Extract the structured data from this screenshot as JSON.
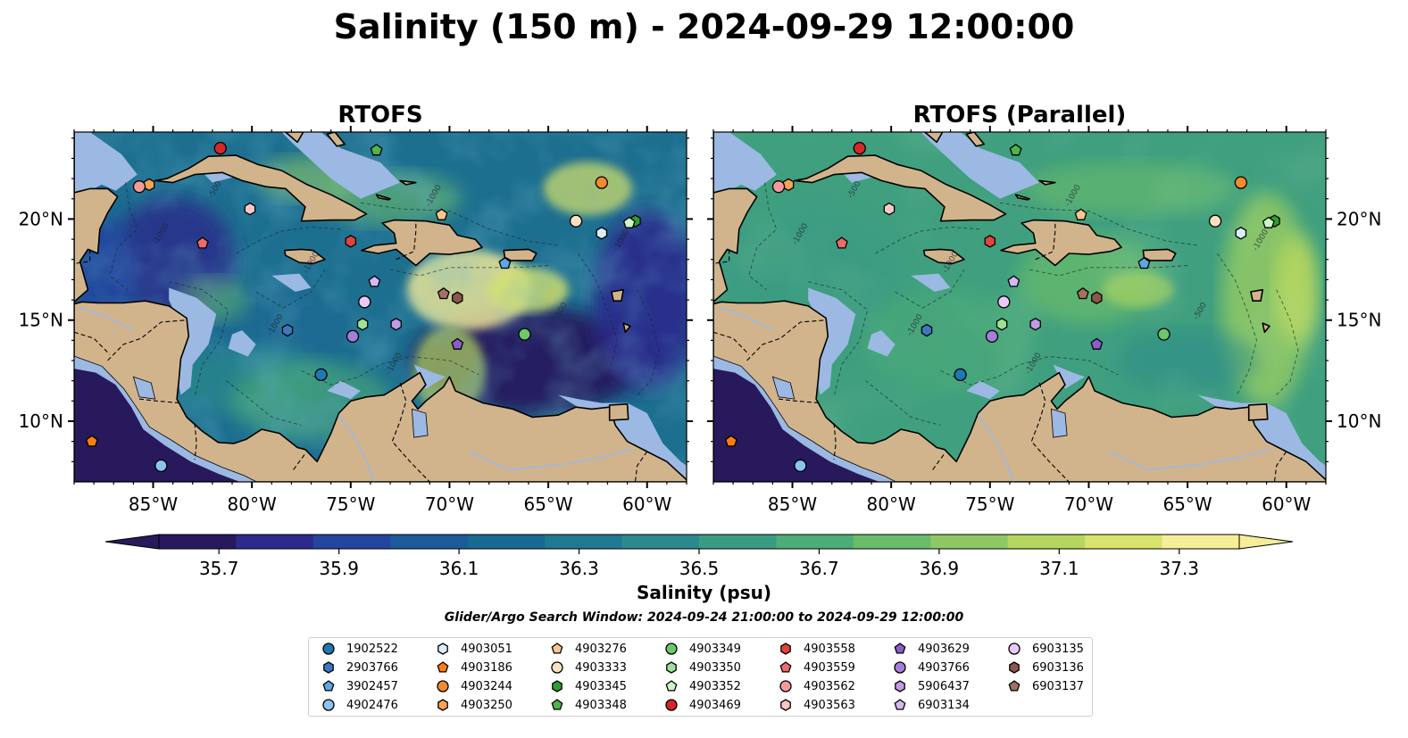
{
  "title": "Salinity (150 m) - 2024-09-29 12:00:00",
  "panels": [
    {
      "title": "RTOFS"
    },
    {
      "title": "RTOFS (Parallel)"
    }
  ],
  "map": {
    "lon_range": [
      -89,
      -58
    ],
    "lat_range": [
      7,
      24.3
    ],
    "lon_ticks": [
      "85°W",
      "80°W",
      "75°W",
      "70°W",
      "65°W",
      "60°W"
    ],
    "lat_ticks": [
      "20°N",
      "15°N",
      "10°N"
    ],
    "land_color": "#d2b48c",
    "shelf_color": "#9bb9e3",
    "contour_labels": [
      "-1000",
      "-500",
      "-1000",
      "-1000",
      "-500",
      "-1000",
      "-1000",
      "-1000"
    ]
  },
  "colorbar": {
    "label": "Salinity (psu)",
    "ticks": [
      "35.7",
      "35.9",
      "36.1",
      "36.3",
      "36.5",
      "36.7",
      "36.9",
      "37.1",
      "37.3"
    ],
    "range": [
      35.6,
      37.4
    ],
    "colors": [
      "#27195c",
      "#2c2a8c",
      "#24459e",
      "#1d5a98",
      "#1a6993",
      "#217891",
      "#2c8a8c",
      "#3a9b83",
      "#4dac77",
      "#6abc6b",
      "#8ec866",
      "#b4d65f",
      "#d8e36c",
      "#f6ed98"
    ]
  },
  "search_window": "Glider/Argo Search Window: 2024-09-24 21:00:00 to 2024-09-29 12:00:00",
  "floats": [
    {
      "id": "1902522",
      "marker": "circle",
      "color": "#1f77b4",
      "lon": -76.5,
      "lat": 12.3
    },
    {
      "id": "2903766",
      "marker": "hexagon",
      "color": "#3a78c0",
      "lon": -78.2,
      "lat": 14.5
    },
    {
      "id": "3902457",
      "marker": "pentagon",
      "color": "#5ea6e4",
      "lon": -67.2,
      "lat": 17.8
    },
    {
      "id": "4902476",
      "marker": "circle",
      "color": "#8cc3ee",
      "lon": -84.6,
      "lat": 7.8
    },
    {
      "id": "4903051",
      "marker": "hexagon",
      "color": "#d8eefb",
      "lon": -62.3,
      "lat": 19.3
    },
    {
      "id": "4903186",
      "marker": "pentagon",
      "color": "#ff7f0e",
      "lon": -88.1,
      "lat": 9.0
    },
    {
      "id": "4903244",
      "marker": "circle",
      "color": "#f28a2e",
      "lon": -62.3,
      "lat": 21.8
    },
    {
      "id": "4903250",
      "marker": "hexagon",
      "color": "#f7a257",
      "lon": -85.2,
      "lat": 21.7
    },
    {
      "id": "4903276",
      "marker": "pentagon",
      "color": "#fbc590",
      "lon": -70.4,
      "lat": 20.2
    },
    {
      "id": "4903333",
      "marker": "circle",
      "color": "#fde0c0",
      "lon": -63.6,
      "lat": 19.9
    },
    {
      "id": "4903345",
      "marker": "hexagon",
      "color": "#2ca02c",
      "lon": -60.6,
      "lat": 19.9
    },
    {
      "id": "4903348",
      "marker": "pentagon",
      "color": "#4fb548",
      "lon": -73.7,
      "lat": 23.4
    },
    {
      "id": "4903349",
      "marker": "circle",
      "color": "#6cc86a",
      "lon": -66.2,
      "lat": 14.3
    },
    {
      "id": "4903350",
      "marker": "hexagon",
      "color": "#9ee29a",
      "lon": -74.4,
      "lat": 14.8
    },
    {
      "id": "4903352",
      "marker": "pentagon",
      "color": "#cdf6c6",
      "lon": -60.9,
      "lat": 19.8
    },
    {
      "id": "4903469",
      "marker": "circle",
      "color": "#d62728",
      "lon": -81.6,
      "lat": 23.5
    },
    {
      "id": "4903558",
      "marker": "hexagon",
      "color": "#e0443f",
      "lon": -75.0,
      "lat": 18.9
    },
    {
      "id": "4903559",
      "marker": "pentagon",
      "color": "#ee6b6b",
      "lon": -82.5,
      "lat": 18.8
    },
    {
      "id": "4903562",
      "marker": "circle",
      "color": "#f49a9a",
      "lon": -85.7,
      "lat": 21.6
    },
    {
      "id": "4903563",
      "marker": "hexagon",
      "color": "#fbc7c7",
      "lon": -80.1,
      "lat": 20.5
    },
    {
      "id": "4903629",
      "marker": "pentagon",
      "color": "#8c5cc9",
      "lon": -69.6,
      "lat": 13.8
    },
    {
      "id": "4903766",
      "marker": "circle",
      "color": "#a57ed8",
      "lon": -74.9,
      "lat": 14.2
    },
    {
      "id": "5906437",
      "marker": "hexagon",
      "color": "#c19be6",
      "lon": -72.7,
      "lat": 14.8
    },
    {
      "id": "6903134",
      "marker": "pentagon",
      "color": "#d6b8f2",
      "lon": -73.8,
      "lat": 16.9
    },
    {
      "id": "6903135",
      "marker": "circle",
      "color": "#eac8f7",
      "lon": -74.3,
      "lat": 15.9
    },
    {
      "id": "6903136",
      "marker": "hexagon",
      "color": "#8c564b",
      "lon": -69.6,
      "lat": 16.1
    },
    {
      "id": "6903137",
      "marker": "pentagon",
      "color": "#a4705f",
      "lon": -70.3,
      "lat": 16.3
    }
  ]
}
